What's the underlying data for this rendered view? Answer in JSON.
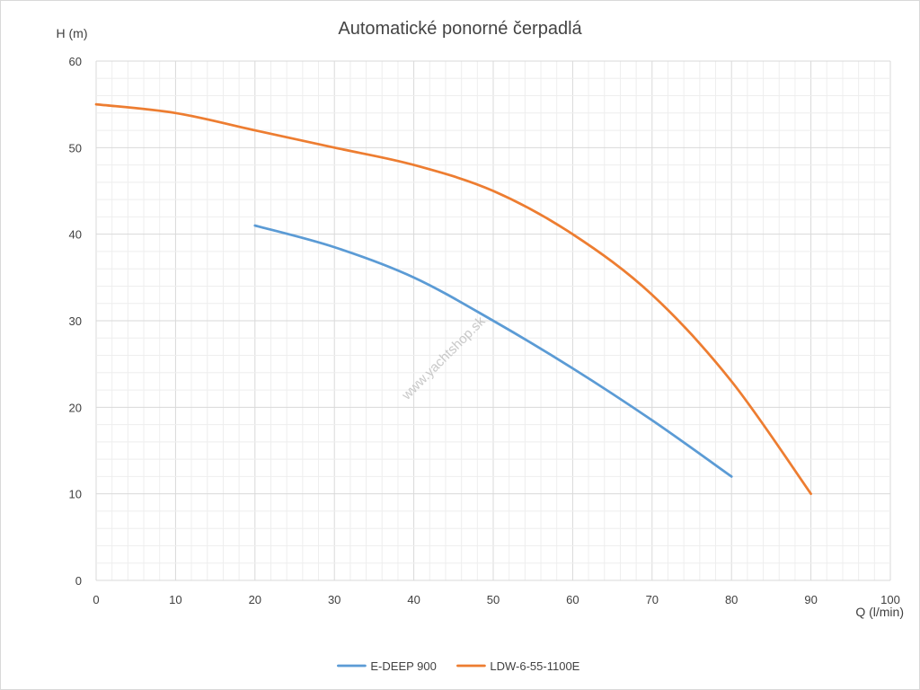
{
  "chart_data": {
    "type": "line",
    "title": "Automatické ponorné čerpadlá",
    "xlabel": "Q (l/min)",
    "ylabel": "H (m)",
    "xlim": [
      0,
      100
    ],
    "ylim": [
      0,
      60
    ],
    "x_ticks": [
      0,
      10,
      20,
      30,
      40,
      50,
      60,
      70,
      80,
      90,
      100
    ],
    "y_ticks": [
      0,
      10,
      20,
      30,
      40,
      50,
      60
    ],
    "x_tick_labels": [
      "0",
      "10",
      "20",
      "30",
      "40",
      "50",
      "60",
      "70",
      "80",
      "90",
      "100"
    ],
    "y_tick_labels": [
      "0",
      "10",
      "20",
      "30",
      "40",
      "50",
      "60"
    ],
    "x_minor_step": 2,
    "y_minor_step": 2,
    "grid": true,
    "legend_position": "bottom",
    "watermark": "www.yachtshop.sk",
    "series": [
      {
        "name": "E-DEEP 900",
        "color": "#5b9bd5",
        "x": [
          20,
          30,
          40,
          50,
          60,
          70,
          80
        ],
        "y": [
          41,
          38.5,
          35,
          30,
          24.5,
          18.5,
          12
        ]
      },
      {
        "name": "LDW-6-55-1100E",
        "color": "#ed7d31",
        "x": [
          0,
          10,
          20,
          30,
          40,
          50,
          60,
          70,
          80,
          90
        ],
        "y": [
          55,
          54,
          52,
          50,
          48,
          45,
          40,
          33,
          23,
          10
        ]
      }
    ]
  }
}
